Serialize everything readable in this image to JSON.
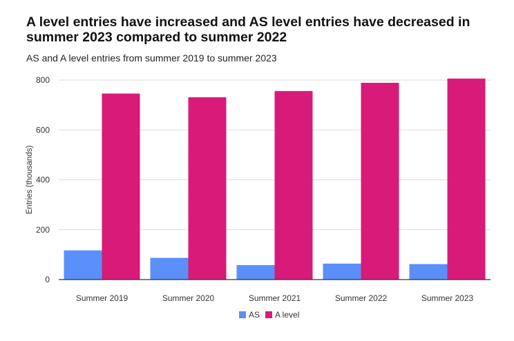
{
  "chart_data": {
    "type": "bar",
    "title": "A level entries have increased and AS level entries have decreased in summer 2023 compared to summer 2022",
    "subtitle": "AS and A level entries from summer 2019 to summer 2023",
    "xlabel": "",
    "ylabel": "Entries (thousands)",
    "categories": [
      "Summer 2019",
      "Summer 2020",
      "Summer 2021",
      "Summer 2022",
      "Summer 2023"
    ],
    "series": [
      {
        "name": "AS",
        "color": "#5b8ff9",
        "values": [
          117,
          87,
          58,
          64,
          62
        ]
      },
      {
        "name": "A level",
        "color": "#d81b78",
        "values": [
          746,
          731,
          756,
          789,
          806
        ]
      }
    ],
    "ylim": [
      0,
      800
    ],
    "yticks": [
      0,
      200,
      400,
      600,
      800
    ],
    "grid": true,
    "legend_position": "bottom"
  }
}
